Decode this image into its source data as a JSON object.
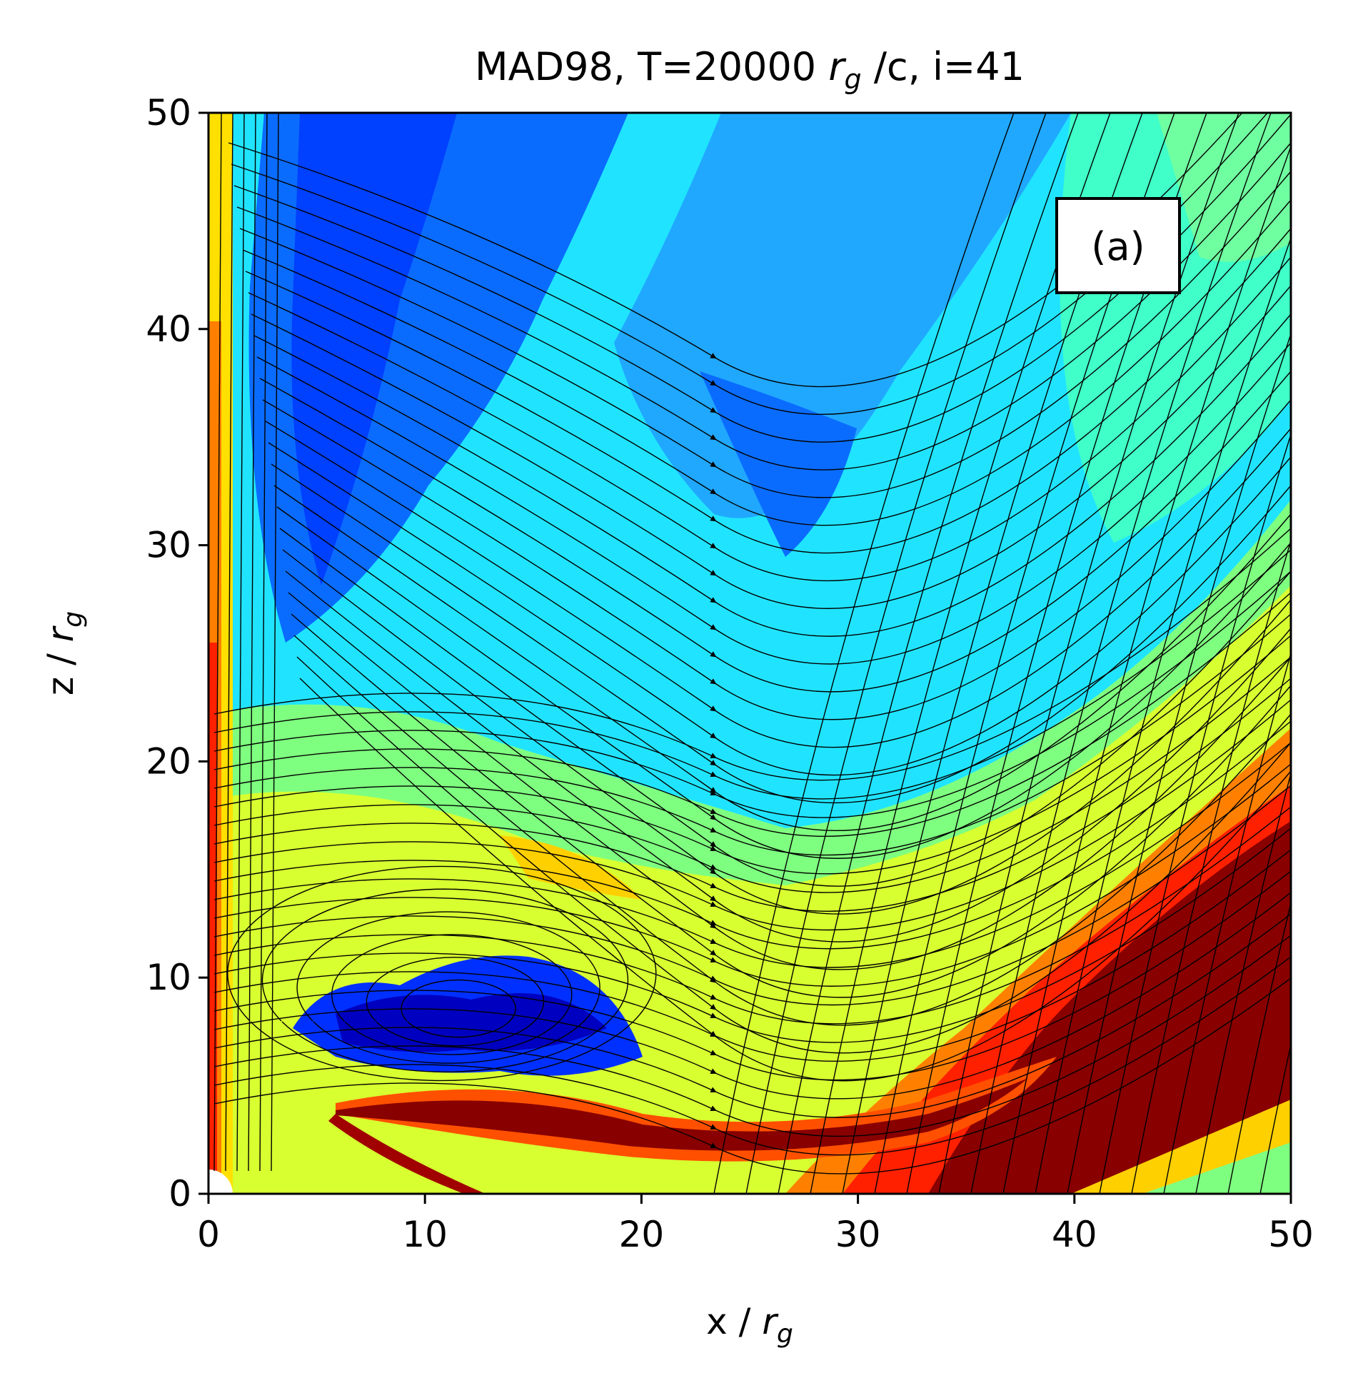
{
  "chart_data": {
    "type": "heatmap",
    "title": "MAD98, T=20000 r_g /c, i=41",
    "title_parts": {
      "prefix": "MAD98, T=20000 ",
      "var": "r",
      "sub": "g",
      "suffix": " /c, i=41"
    },
    "xlabel": "x / r_g",
    "xlabel_parts": {
      "prefix": "x / ",
      "var": "r",
      "sub": "g"
    },
    "ylabel": "z / r_g",
    "ylabel_parts": {
      "prefix": "z / ",
      "var": "r",
      "sub": "g"
    },
    "xlim": [
      0,
      50
    ],
    "ylim": [
      0,
      50
    ],
    "x_ticks": [
      0,
      10,
      20,
      30,
      40,
      50
    ],
    "y_ticks": [
      0,
      10,
      20,
      30,
      40,
      50
    ],
    "x_tick_labels": [
      "0",
      "10",
      "20",
      "30",
      "40",
      "50"
    ],
    "y_tick_labels": [
      "0",
      "10",
      "20",
      "30",
      "40",
      "50"
    ],
    "colormap": "jet",
    "panel_label": "(a)",
    "panel_label_position": "top-right",
    "overlay": "streamlines with arrows",
    "grid": false,
    "legend": "none"
  }
}
